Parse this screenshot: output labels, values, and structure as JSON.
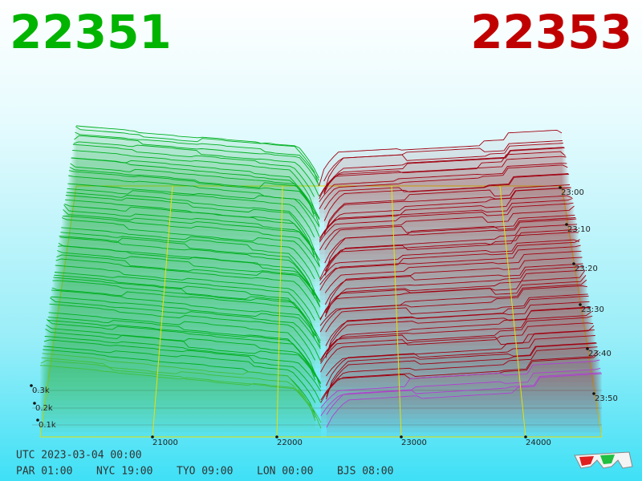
{
  "header": {
    "bid": "22351",
    "ask": "22353"
  },
  "axes": {
    "price_ticks": [
      "21000",
      "22000",
      "23000",
      "24000"
    ],
    "depth_ticks": [
      "0.3k",
      "0.2k",
      "0.1k"
    ],
    "time_ticks": [
      "23:00",
      "23:10",
      "23:20",
      "23:30",
      "23:40",
      "23:50"
    ]
  },
  "footer": {
    "utc": "UTC 2023-03-04 00:00",
    "clocks": [
      "PAR 01:00",
      "NYC 19:00",
      "TYO 09:00",
      "LON 00:00",
      "BJS 08:00"
    ]
  }
}
